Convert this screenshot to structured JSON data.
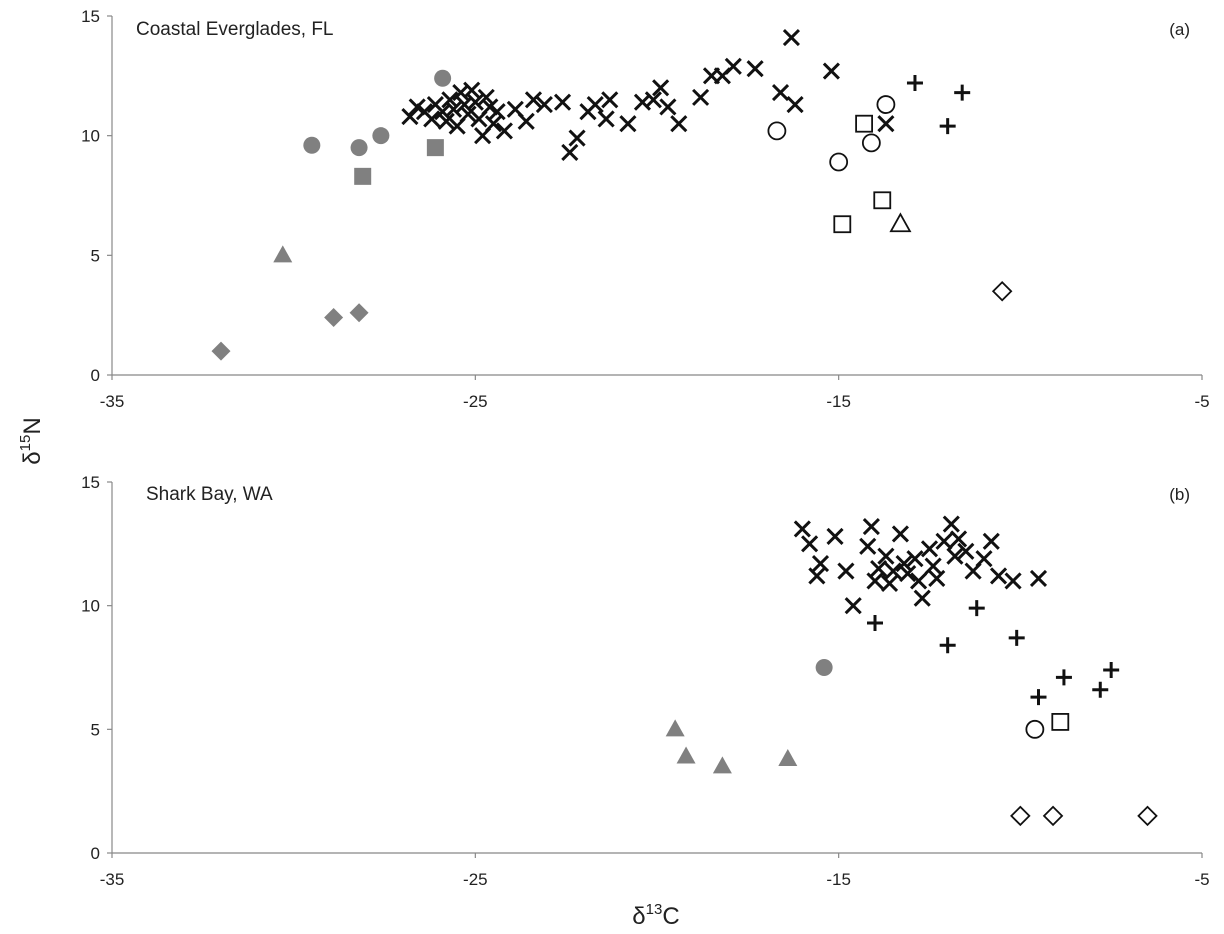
{
  "figure": {
    "ylabel_prefix": "δ",
    "ylabel_sup": "15",
    "ylabel_suffix": "N",
    "xlabel_prefix": "δ",
    "xlabel_sup": "13",
    "xlabel_suffix": "C"
  },
  "colors": {
    "gray": "#808080",
    "black": "#111111"
  },
  "chart_data": [
    {
      "type": "scatter",
      "title": "Coastal Everglades, FL",
      "panel_label": "(a)",
      "xlim": [
        -35,
        -5
      ],
      "ylim": [
        0,
        15
      ],
      "xticks": [
        "-35",
        "-25",
        "-15",
        "-5"
      ],
      "xtick_values": [
        -35,
        -25,
        -15,
        -5
      ],
      "yticks": [
        "0",
        "5",
        "10",
        "15"
      ],
      "ytick_values": [
        0,
        5,
        10,
        15
      ],
      "grid": false,
      "series": [
        {
          "marker": "circle",
          "filled": true,
          "points": [
            [
              -29.5,
              9.6
            ],
            [
              -28.2,
              9.5
            ],
            [
              -27.6,
              10.0
            ],
            [
              -25.9,
              12.4
            ]
          ]
        },
        {
          "marker": "square",
          "filled": true,
          "points": [
            [
              -28.1,
              8.3
            ],
            [
              -26.1,
              9.5
            ]
          ]
        },
        {
          "marker": "triangle",
          "filled": true,
          "points": [
            [
              -30.3,
              5.0
            ]
          ]
        },
        {
          "marker": "diamond",
          "filled": true,
          "points": [
            [
              -32.0,
              1.0
            ],
            [
              -28.9,
              2.4
            ],
            [
              -28.2,
              2.6
            ]
          ]
        },
        {
          "marker": "x",
          "filled": false,
          "points": [
            [
              -26.8,
              10.8
            ],
            [
              -26.6,
              11.2
            ],
            [
              -26.4,
              11.0
            ],
            [
              -26.2,
              10.7
            ],
            [
              -26.1,
              11.3
            ],
            [
              -25.9,
              11.0
            ],
            [
              -25.8,
              10.6
            ],
            [
              -25.7,
              11.5
            ],
            [
              -25.6,
              11.1
            ],
            [
              -25.5,
              10.4
            ],
            [
              -25.4,
              11.8
            ],
            [
              -25.3,
              11.3
            ],
            [
              -25.2,
              10.9
            ],
            [
              -25.1,
              11.9
            ],
            [
              -25.0,
              11.4
            ],
            [
              -24.9,
              10.7
            ],
            [
              -24.8,
              10.0
            ],
            [
              -24.7,
              11.6
            ],
            [
              -24.6,
              11.2
            ],
            [
              -24.5,
              10.5
            ],
            [
              -24.4,
              11.0
            ],
            [
              -24.2,
              10.2
            ],
            [
              -23.9,
              11.1
            ],
            [
              -23.6,
              10.6
            ],
            [
              -23.4,
              11.5
            ],
            [
              -23.1,
              11.3
            ],
            [
              -22.6,
              11.4
            ],
            [
              -22.4,
              9.3
            ],
            [
              -22.2,
              9.9
            ],
            [
              -21.9,
              11.0
            ],
            [
              -21.7,
              11.3
            ],
            [
              -21.4,
              10.7
            ],
            [
              -21.3,
              11.5
            ],
            [
              -20.8,
              10.5
            ],
            [
              -20.4,
              11.4
            ],
            [
              -20.1,
              11.5
            ],
            [
              -19.9,
              12.0
            ],
            [
              -19.7,
              11.2
            ],
            [
              -19.4,
              10.5
            ],
            [
              -18.8,
              11.6
            ],
            [
              -18.5,
              12.5
            ],
            [
              -18.2,
              12.5
            ],
            [
              -17.9,
              12.9
            ],
            [
              -17.3,
              12.8
            ],
            [
              -16.6,
              11.8
            ],
            [
              -16.3,
              14.1
            ],
            [
              -16.2,
              11.3
            ],
            [
              -15.2,
              12.7
            ],
            [
              -13.7,
              10.5
            ]
          ]
        },
        {
          "marker": "plus",
          "filled": false,
          "points": [
            [
              -12.9,
              12.2
            ],
            [
              -12.0,
              10.4
            ],
            [
              -11.6,
              11.8
            ]
          ]
        },
        {
          "marker": "circle",
          "filled": false,
          "points": [
            [
              -16.7,
              10.2
            ],
            [
              -15.0,
              8.9
            ],
            [
              -14.1,
              9.7
            ],
            [
              -13.7,
              11.3
            ]
          ]
        },
        {
          "marker": "square",
          "filled": false,
          "points": [
            [
              -14.3,
              10.5
            ],
            [
              -14.9,
              6.3
            ],
            [
              -13.8,
              7.3
            ]
          ]
        },
        {
          "marker": "triangle",
          "filled": false,
          "points": [
            [
              -13.3,
              6.3
            ]
          ]
        },
        {
          "marker": "diamond",
          "filled": false,
          "points": [
            [
              -10.5,
              3.5
            ]
          ]
        }
      ]
    },
    {
      "type": "scatter",
      "title": "Shark Bay, WA",
      "panel_label": "(b)",
      "xlim": [
        -35,
        -5
      ],
      "ylim": [
        0,
        15
      ],
      "xticks": [
        "-35",
        "-25",
        "-15",
        "-5"
      ],
      "xtick_values": [
        -35,
        -25,
        -15,
        -5
      ],
      "yticks": [
        "0",
        "5",
        "10",
        "15"
      ],
      "ytick_values": [
        0,
        5,
        10,
        15
      ],
      "grid": false,
      "series": [
        {
          "marker": "circle",
          "filled": true,
          "points": [
            [
              -15.4,
              7.5
            ]
          ]
        },
        {
          "marker": "triangle",
          "filled": true,
          "points": [
            [
              -19.5,
              5.0
            ],
            [
              -19.2,
              3.9
            ],
            [
              -18.2,
              3.5
            ],
            [
              -16.4,
              3.8
            ]
          ]
        },
        {
          "marker": "x",
          "filled": false,
          "points": [
            [
              -16.0,
              13.1
            ],
            [
              -15.8,
              12.5
            ],
            [
              -15.6,
              11.2
            ],
            [
              -15.5,
              11.7
            ],
            [
              -15.1,
              12.8
            ],
            [
              -14.8,
              11.4
            ],
            [
              -14.6,
              10.0
            ],
            [
              -14.2,
              12.4
            ],
            [
              -14.1,
              13.2
            ],
            [
              -14.0,
              11.0
            ],
            [
              -13.9,
              11.5
            ],
            [
              -13.7,
              12.0
            ],
            [
              -13.6,
              10.9
            ],
            [
              -13.5,
              11.4
            ],
            [
              -13.3,
              12.9
            ],
            [
              -13.2,
              11.7
            ],
            [
              -13.1,
              11.3
            ],
            [
              -12.9,
              11.9
            ],
            [
              -12.8,
              11.0
            ],
            [
              -12.7,
              10.3
            ],
            [
              -12.5,
              12.3
            ],
            [
              -12.4,
              11.6
            ],
            [
              -12.3,
              11.1
            ],
            [
              -12.1,
              12.6
            ],
            [
              -11.9,
              13.3
            ],
            [
              -11.8,
              12.0
            ],
            [
              -11.7,
              12.7
            ],
            [
              -11.5,
              12.2
            ],
            [
              -11.3,
              11.4
            ],
            [
              -11.0,
              11.9
            ],
            [
              -10.8,
              12.6
            ],
            [
              -10.6,
              11.2
            ],
            [
              -10.2,
              11.0
            ],
            [
              -9.5,
              11.1
            ]
          ]
        },
        {
          "marker": "plus",
          "filled": false,
          "points": [
            [
              -14.0,
              9.3
            ],
            [
              -12.0,
              8.4
            ],
            [
              -11.2,
              9.9
            ],
            [
              -10.1,
              8.7
            ],
            [
              -9.5,
              6.3
            ],
            [
              -8.8,
              7.1
            ],
            [
              -7.8,
              6.6
            ],
            [
              -7.5,
              7.4
            ]
          ]
        },
        {
          "marker": "circle",
          "filled": false,
          "points": [
            [
              -9.6,
              5.0
            ]
          ]
        },
        {
          "marker": "square",
          "filled": false,
          "points": [
            [
              -8.9,
              5.3
            ]
          ]
        },
        {
          "marker": "diamond",
          "filled": false,
          "points": [
            [
              -10.0,
              1.5
            ],
            [
              -9.1,
              1.5
            ],
            [
              -6.5,
              1.5
            ]
          ]
        }
      ]
    }
  ]
}
